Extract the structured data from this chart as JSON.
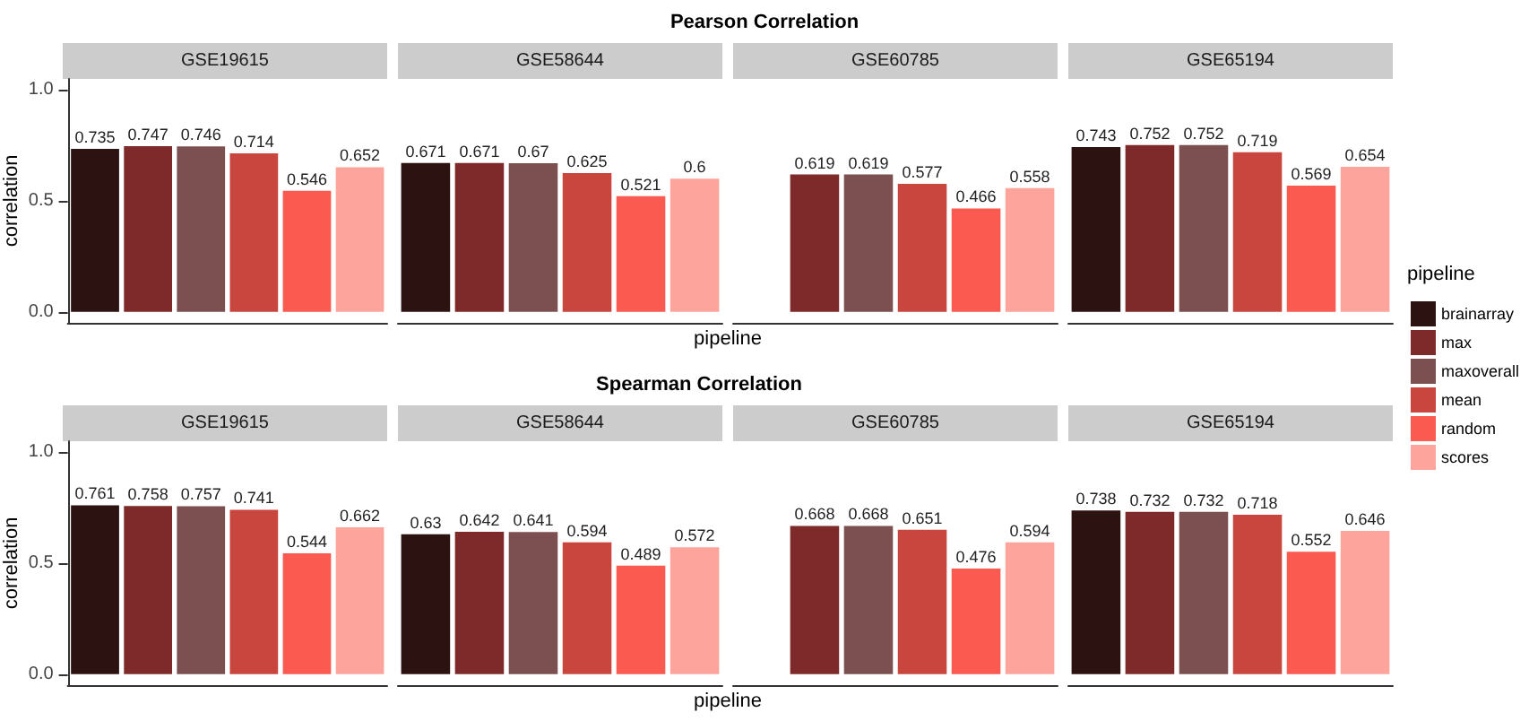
{
  "chart_data": [
    {
      "type": "bar",
      "title": "Pearson Correlation",
      "xlabel": "pipeline",
      "ylabel": "correlation",
      "legend_title": "pipeline",
      "legend": "right",
      "data_labels": true,
      "grid": false,
      "tick_labels": "y",
      "categories": [
        "GSE19615",
        "GSE58644",
        "GSE60785",
        "GSE65194"
      ],
      "ylim": [
        -0.05,
        1.05
      ],
      "yticks": [
        {
          "value": 0,
          "label": "0.0"
        },
        {
          "value": 0.5,
          "label": "0.5"
        },
        {
          "value": 1,
          "label": "1.0"
        }
      ],
      "series": [
        {
          "name": "brainarray",
          "color": "#2d1212",
          "values": [
            0.735,
            0.671,
            null,
            0.743
          ]
        },
        {
          "name": "max",
          "color": "#7f2a2a",
          "values": [
            0.747,
            0.671,
            0.619,
            0.752
          ]
        },
        {
          "name": "maxoverall",
          "color": "#7c5050",
          "values": [
            0.746,
            0.67,
            0.619,
            0.752
          ]
        },
        {
          "name": "mean",
          "color": "#c9463f",
          "values": [
            0.714,
            0.625,
            0.577,
            0.719
          ]
        },
        {
          "name": "random",
          "color": "#fa5a50",
          "values": [
            0.546,
            0.521,
            0.466,
            0.569
          ]
        },
        {
          "name": "scores",
          "color": "#fda49c",
          "values": [
            0.652,
            0.6,
            0.558,
            0.654
          ]
        }
      ]
    },
    {
      "type": "bar",
      "title": "Spearman Correlation",
      "xlabel": "pipeline",
      "ylabel": "correlation",
      "data_labels": true,
      "grid": false,
      "tick_labels": "y",
      "categories": [
        "GSE19615",
        "GSE58644",
        "GSE60785",
        "GSE65194"
      ],
      "ylim": [
        -0.05,
        1.05
      ],
      "yticks": [
        {
          "value": 0,
          "label": "0.0"
        },
        {
          "value": 0.5,
          "label": "0.5"
        },
        {
          "value": 1,
          "label": "1.0"
        }
      ],
      "series": [
        {
          "color": "#2d1212",
          "values": [
            0.761,
            0.63,
            null,
            0.738
          ]
        },
        {
          "color": "#7f2a2a",
          "values": [
            0.758,
            0.642,
            0.668,
            0.732
          ]
        },
        {
          "color": "#7c5050",
          "values": [
            0.757,
            0.641,
            0.668,
            0.732
          ]
        },
        {
          "color": "#c9463f",
          "values": [
            0.741,
            0.594,
            0.651,
            0.718
          ]
        },
        {
          "color": "#fa5a50",
          "values": [
            0.544,
            0.489,
            0.476,
            0.552
          ]
        },
        {
          "color": "#fda49c",
          "values": [
            0.662,
            0.572,
            0.594,
            0.646
          ]
        }
      ]
    }
  ]
}
